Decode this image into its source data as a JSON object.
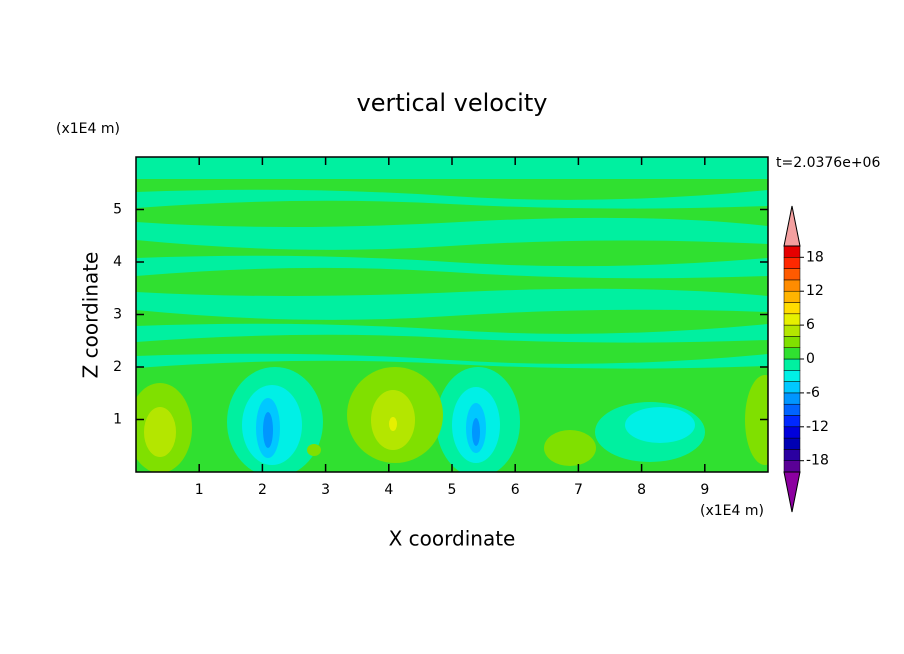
{
  "chart_data": {
    "type": "contour",
    "title": "vertical velocity",
    "x_label": "X coordinate",
    "y_label": "Z coordinate",
    "x_unit": "(x1E4 m)",
    "y_unit": "(x1E4 m)",
    "annotation": "t=2.0376e+06",
    "xlim": [
      0,
      10
    ],
    "xticks": [
      1,
      2,
      3,
      4,
      5,
      6,
      7,
      8,
      9
    ],
    "ylim": [
      0,
      6
    ],
    "yticks": [
      1,
      2,
      3,
      4,
      5
    ],
    "colorbar": {
      "levels": [
        -20,
        -18,
        -16,
        -14,
        -12,
        -10,
        -8,
        -6,
        -4,
        -2,
        0,
        2,
        4,
        6,
        8,
        10,
        12,
        14,
        16,
        18,
        20
      ],
      "colors": [
        "#5a0096",
        "#2a00a0",
        "#0000b4",
        "#0000dc",
        "#0028ff",
        "#0064ff",
        "#0096ff",
        "#00c8ff",
        "#00f0e6",
        "#00f0a0",
        "#30e030",
        "#80e000",
        "#b4e600",
        "#e6f000",
        "#ffdc00",
        "#ffb400",
        "#ff8c00",
        "#ff5a00",
        "#ff2800",
        "#e60000"
      ],
      "ticks": [
        -18,
        -12,
        -6,
        0,
        6,
        12,
        18
      ],
      "under_color": "#8c00a0",
      "over_color": "#f4a0a0"
    }
  }
}
